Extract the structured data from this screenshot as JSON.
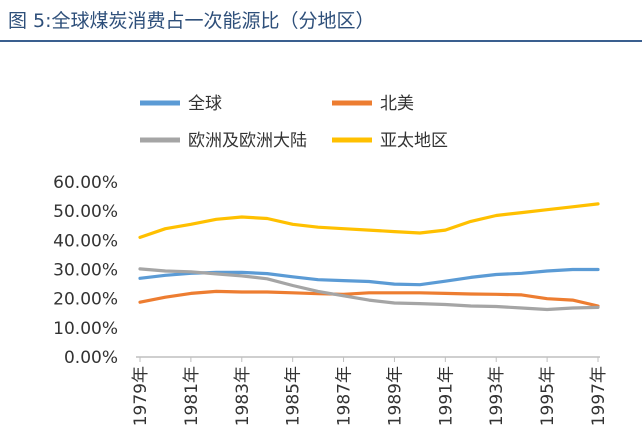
{
  "figure": {
    "title": "图 5:全球煤炭消费占一次能源比（分地区）"
  },
  "chart_data": {
    "type": "line",
    "title": "",
    "xlabel": "",
    "ylabel": "",
    "ylim": [
      0,
      60
    ],
    "yticks": [
      "0.00%",
      "10.00%",
      "20.00%",
      "30.00%",
      "40.00%",
      "50.00%",
      "60.00%"
    ],
    "x": [
      1979,
      1980,
      1981,
      1982,
      1983,
      1984,
      1985,
      1986,
      1987,
      1988,
      1989,
      1990,
      1991,
      1992,
      1993,
      1994,
      1995,
      1996,
      1997
    ],
    "xtick_labels": [
      "1979年",
      "1981年",
      "1983年",
      "1985年",
      "1987年",
      "1989年",
      "1991年",
      "1993年",
      "1995年",
      "1997年"
    ],
    "grid": false,
    "legend": "top",
    "series": [
      {
        "name": "全球",
        "color": "#5b9bd5",
        "values": [
          27.0,
          28.0,
          28.7,
          29.0,
          29.0,
          28.6,
          27.5,
          26.5,
          26.2,
          25.9,
          25.0,
          24.8,
          26.0,
          27.3,
          28.3,
          28.7,
          29.5,
          30.0,
          30.0
        ]
      },
      {
        "name": "北美",
        "color": "#ed7d31",
        "values": [
          18.8,
          20.5,
          21.8,
          22.5,
          22.3,
          22.3,
          22.0,
          21.7,
          21.5,
          22.0,
          22.0,
          22.0,
          21.8,
          21.6,
          21.5,
          21.3,
          20.0,
          19.5,
          17.5
        ]
      },
      {
        "name": "欧洲及欧洲大陆",
        "color": "#a5a5a5",
        "values": [
          30.2,
          29.5,
          29.2,
          28.5,
          27.8,
          26.8,
          24.5,
          22.5,
          21.0,
          19.5,
          18.5,
          18.3,
          18.0,
          17.5,
          17.3,
          16.8,
          16.3,
          16.8,
          17.0
        ]
      },
      {
        "name": "亚太地区",
        "color": "#ffc000",
        "values": [
          41.0,
          44.0,
          45.5,
          47.2,
          48.0,
          47.5,
          45.5,
          44.5,
          44.0,
          43.5,
          43.0,
          42.5,
          43.5,
          46.5,
          48.5,
          49.5,
          50.5,
          51.5,
          52.5
        ]
      }
    ]
  }
}
